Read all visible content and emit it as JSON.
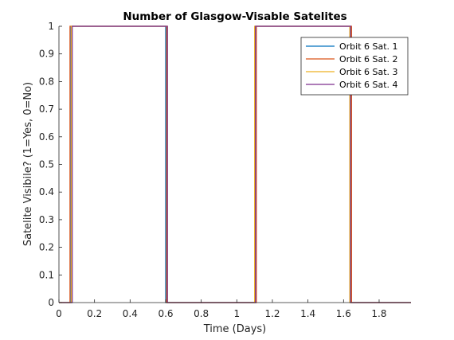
{
  "chart_data": {
    "type": "line",
    "title": "Number of Glasgow-Visable Satelites",
    "xlabel": "Time (Days)",
    "ylabel": "Satelite Visibile? (1=Yes, 0=No)",
    "xlim": [
      0,
      1.9792
    ],
    "ylim": [
      0,
      1
    ],
    "xticks": [
      0,
      0.2,
      0.4,
      0.6,
      0.8,
      1,
      1.2,
      1.4,
      1.6,
      1.8
    ],
    "xtick_labels": [
      "0",
      "0.2",
      "0.4",
      "0.6",
      "0.8",
      "1",
      "1.2",
      "1.4",
      "1.6",
      "1.8"
    ],
    "yticks": [
      0,
      0.1,
      0.2,
      0.3,
      0.4,
      0.5,
      0.6,
      0.7,
      0.8,
      0.9,
      1
    ],
    "ytick_labels": [
      "0",
      "0.1",
      "0.2",
      "0.3",
      "0.4",
      "0.5",
      "0.6",
      "0.7",
      "0.8",
      "0.9",
      "1"
    ],
    "grid": false,
    "legend_position": "top-right",
    "series": [
      {
        "name": "Orbit 6 Sat. 1",
        "color": "#0072BD",
        "x": [
          0,
          0.068,
          0.068,
          0.6,
          0.6,
          1.105,
          1.105,
          1.64,
          1.64,
          1.9792
        ],
        "y": [
          0,
          0,
          1,
          1,
          0,
          0,
          1,
          1,
          0,
          0
        ]
      },
      {
        "name": "Orbit 6 Sat. 2",
        "color": "#D95319",
        "x": [
          0,
          0.062,
          0.062,
          0.605,
          0.605,
          1.11,
          1.11,
          1.645,
          1.645,
          1.9792
        ],
        "y": [
          0,
          0,
          1,
          1,
          0,
          0,
          1,
          1,
          0,
          0
        ]
      },
      {
        "name": "Orbit 6 Sat. 3",
        "color": "#EDB120",
        "x": [
          0,
          0.07,
          0.07,
          0.61,
          0.61,
          1.1,
          1.1,
          1.635,
          1.635,
          1.9792
        ],
        "y": [
          0,
          0,
          1,
          1,
          0,
          0,
          1,
          1,
          0,
          0
        ]
      },
      {
        "name": "Orbit 6 Sat. 4",
        "color": "#7E2F8E",
        "x": [
          0,
          0.075,
          0.075,
          0.61,
          0.61,
          1.105,
          1.105,
          1.64,
          1.64,
          1.9792
        ],
        "y": [
          0,
          0,
          1,
          1,
          0,
          0,
          1,
          1,
          0,
          0
        ]
      }
    ]
  }
}
